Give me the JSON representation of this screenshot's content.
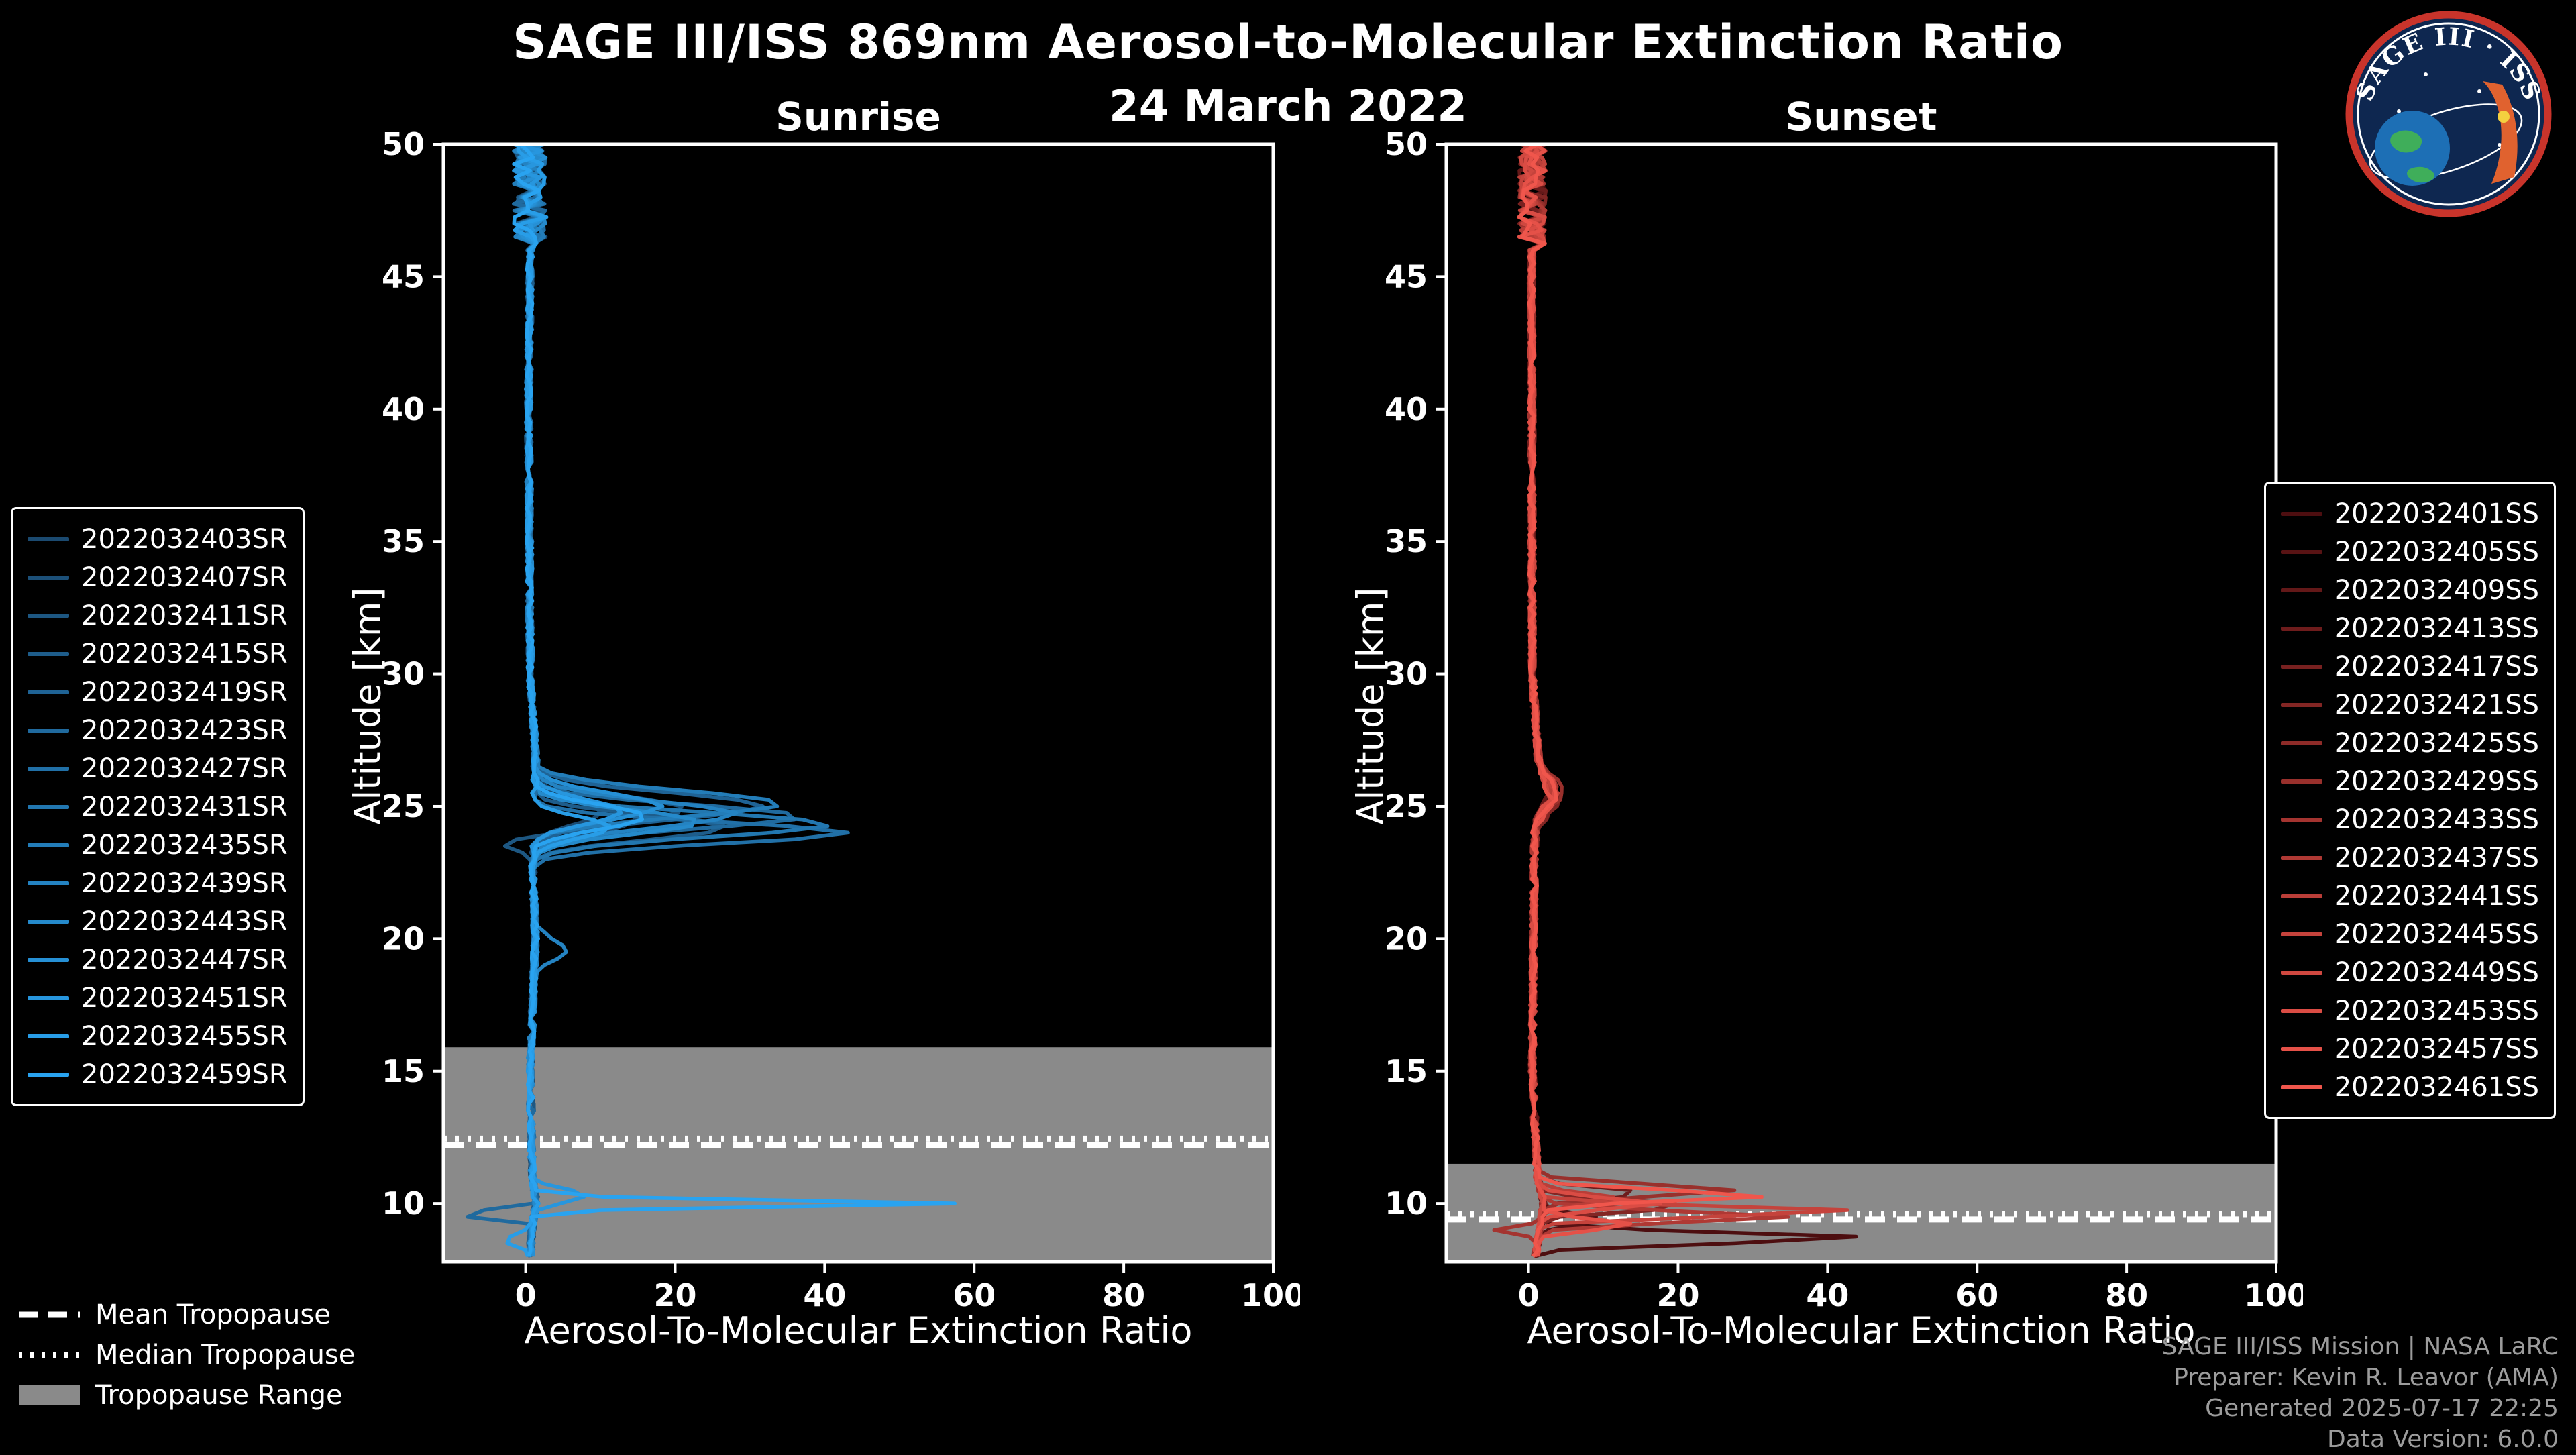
{
  "title": "SAGE III/ISS 869nm Aerosol-to-Molecular Extinction Ratio",
  "date": "24 March 2022",
  "logo": {
    "text": "SAGE III · ISS"
  },
  "credits": [
    "SAGE III/ISS Mission | NASA LaRC",
    "Preparer: Kevin R. Leavor (AMA)",
    "Generated 2025-07-17 22:25",
    "Data Version: 6.0.0"
  ],
  "tropopause_legend": [
    {
      "style": "dashed",
      "label": "Mean Tropopause"
    },
    {
      "style": "dotted",
      "label": "Median Tropopause"
    },
    {
      "style": "band",
      "label": "Tropopause Range"
    }
  ],
  "chart_data": [
    {
      "type": "line",
      "title": "Sunrise",
      "xlabel": "Aerosol-To-Molecular Extinction Ratio",
      "ylabel": "Altitude [km]",
      "xlim": [
        -11,
        100
      ],
      "ylim": [
        7.8,
        50
      ],
      "xticks": [
        0,
        20,
        40,
        60,
        80,
        100
      ],
      "yticks": [
        10,
        15,
        20,
        25,
        30,
        35,
        40,
        45,
        50
      ],
      "grid": false,
      "legend_position": "outside-left",
      "color_start": "#1b4a70",
      "color_end": "#29a3f0",
      "tropopause": {
        "mean_km": 12.2,
        "median_km": 12.45,
        "range_km": [
          7.8,
          15.9
        ],
        "band_color": "#8a8a8a"
      },
      "noise": {
        "top_alt": 46,
        "top_amp": 2.2,
        "base_amp": 0.4
      },
      "base_profile": [
        [
          50,
          0.6
        ],
        [
          46,
          0.6
        ],
        [
          40,
          0.4
        ],
        [
          30,
          0.6
        ],
        [
          27,
          1.3
        ],
        [
          23,
          0.9
        ],
        [
          20,
          1.3
        ],
        [
          15,
          0.6
        ],
        [
          11,
          0.9
        ],
        [
          10,
          1.4
        ],
        [
          9,
          0.8
        ],
        [
          7.8,
          0.6
        ]
      ],
      "series": [
        {
          "label": "2022032403SR",
          "peaks": [
            {
              "alt": 24.8,
              "amp": 9,
              "sigma": 0.5
            }
          ]
        },
        {
          "label": "2022032407SR",
          "peaks": [
            {
              "alt": 24.5,
              "amp": 14,
              "sigma": 0.5
            }
          ]
        },
        {
          "label": "2022032411SR",
          "peaks": [
            {
              "alt": 24.9,
              "amp": 20,
              "sigma": 0.5
            },
            {
              "alt": 23.6,
              "amp": -5,
              "sigma": 0.2
            }
          ]
        },
        {
          "label": "2022032415SR",
          "peaks": [
            {
              "alt": 24.2,
              "amp": 26,
              "sigma": 0.45
            }
          ]
        },
        {
          "label": "2022032419SR",
          "peaks": [
            {
              "alt": 25.0,
              "amp": 31,
              "sigma": 0.5
            }
          ]
        },
        {
          "label": "2022032423SR",
          "peaks": [
            {
              "alt": 24.6,
              "amp": 36,
              "sigma": 0.45
            },
            {
              "alt": 9.6,
              "amp": -11,
              "sigma": 0.15
            }
          ]
        },
        {
          "label": "2022032427SR",
          "peaks": [
            {
              "alt": 24.0,
              "amp": 42,
              "sigma": 0.4
            }
          ]
        },
        {
          "label": "2022032431SR",
          "peaks": [
            {
              "alt": 24.3,
              "amp": 40,
              "sigma": 0.45
            }
          ]
        },
        {
          "label": "2022032435SR",
          "peaks": [
            {
              "alt": 25.1,
              "amp": 33,
              "sigma": 0.5
            }
          ]
        },
        {
          "label": "2022032439SR",
          "peaks": [
            {
              "alt": 24.7,
              "amp": 27,
              "sigma": 0.5
            },
            {
              "alt": 19.6,
              "amp": 4,
              "sigma": 0.4
            }
          ]
        },
        {
          "label": "2022032443SR",
          "peaks": [
            {
              "alt": 24.4,
              "amp": 22,
              "sigma": 0.45
            }
          ]
        },
        {
          "label": "2022032447SR",
          "peaks": [
            {
              "alt": 25.0,
              "amp": 17,
              "sigma": 0.5
            }
          ]
        },
        {
          "label": "2022032451SR",
          "peaks": [
            {
              "alt": 24.8,
              "amp": 12,
              "sigma": 0.45
            },
            {
              "alt": 10.3,
              "amp": 7,
              "sigma": 0.25
            }
          ]
        },
        {
          "label": "2022032455SR",
          "peaks": [
            {
              "alt": 24.2,
              "amp": 10,
              "sigma": 0.4
            },
            {
              "alt": 8.6,
              "amp": -4,
              "sigma": 0.2
            }
          ]
        },
        {
          "label": "2022032459SR",
          "peaks": [
            {
              "alt": 24.6,
              "amp": 15,
              "sigma": 0.45
            },
            {
              "alt": 10.0,
              "amp": 56,
              "sigma": 0.13
            }
          ]
        }
      ]
    },
    {
      "type": "line",
      "title": "Sunset",
      "xlabel": "Aerosol-To-Molecular Extinction Ratio",
      "ylabel": "Altitude [km]",
      "xlim": [
        -11,
        100
      ],
      "ylim": [
        7.8,
        50
      ],
      "xticks": [
        0,
        20,
        40,
        60,
        80,
        100
      ],
      "yticks": [
        10,
        15,
        20,
        25,
        30,
        35,
        40,
        45,
        50
      ],
      "grid": false,
      "legend_position": "outside-right",
      "color_start": "#4d0e10",
      "color_end": "#f0564c",
      "tropopause": {
        "mean_km": 9.4,
        "median_km": 9.6,
        "range_km": [
          7.8,
          11.5
        ],
        "band_color": "#8a8a8a"
      },
      "noise": {
        "top_alt": 46,
        "top_amp": 1.8,
        "base_amp": 0.4
      },
      "base_profile": [
        [
          50,
          0.6
        ],
        [
          45,
          0.4
        ],
        [
          30,
          0.5
        ],
        [
          26,
          1.5
        ],
        [
          24,
          0.8
        ],
        [
          15,
          0.5
        ],
        [
          11,
          1.2
        ],
        [
          10,
          2.0
        ],
        [
          9,
          1.5
        ],
        [
          7.8,
          0.8
        ]
      ],
      "series": [
        {
          "label": "2022032401SS",
          "peaks": [
            {
              "alt": 25.6,
              "amp": 1.5,
              "sigma": 0.6
            },
            {
              "alt": 8.7,
              "amp": 44,
              "sigma": 0.2
            }
          ]
        },
        {
          "label": "2022032405SS",
          "peaks": [
            {
              "alt": 25.4,
              "amp": 2.0,
              "sigma": 0.5
            },
            {
              "alt": 9.4,
              "amp": 8,
              "sigma": 0.2
            }
          ]
        },
        {
          "label": "2022032409SS",
          "peaks": [
            {
              "alt": 25.8,
              "amp": 1.2,
              "sigma": 0.5
            }
          ]
        },
        {
          "label": "2022032413SS",
          "peaks": [
            {
              "alt": 25.3,
              "amp": 2.4,
              "sigma": 0.5
            },
            {
              "alt": 10.4,
              "amp": 14,
              "sigma": 0.2
            }
          ]
        },
        {
          "label": "2022032417SS",
          "peaks": [
            {
              "alt": 25.6,
              "amp": 1.8,
              "sigma": 0.5
            }
          ]
        },
        {
          "label": "2022032421SS",
          "peaks": [
            {
              "alt": 25.2,
              "amp": 2.6,
              "sigma": 0.6
            },
            {
              "alt": 9.9,
              "amp": 20,
              "sigma": 0.2
            }
          ]
        },
        {
          "label": "2022032425SS",
          "peaks": [
            {
              "alt": 25.7,
              "amp": 2.2,
              "sigma": 0.5
            }
          ]
        },
        {
          "label": "2022032429SS",
          "peaks": [
            {
              "alt": 25.5,
              "amp": 3.0,
              "sigma": 0.6
            },
            {
              "alt": 10.5,
              "amp": 26,
              "sigma": 0.22
            }
          ]
        },
        {
          "label": "2022032433SS",
          "peaks": [
            {
              "alt": 25.4,
              "amp": 2.0,
              "sigma": 0.5
            },
            {
              "alt": 9.0,
              "amp": -6,
              "sigma": 0.15
            }
          ]
        },
        {
          "label": "2022032437SS",
          "peaks": [
            {
              "alt": 25.6,
              "amp": 2.5,
              "sigma": 0.5
            },
            {
              "alt": 9.5,
              "amp": 33,
              "sigma": 0.2
            }
          ]
        },
        {
          "label": "2022032441SS",
          "peaks": [
            {
              "alt": 25.3,
              "amp": 1.6,
              "sigma": 0.5
            },
            {
              "alt": 10.2,
              "amp": 10,
              "sigma": 0.2
            }
          ]
        },
        {
          "label": "2022032445SS",
          "peaks": [
            {
              "alt": 25.5,
              "amp": 2.2,
              "sigma": 0.5
            },
            {
              "alt": 9.7,
              "amp": 42,
              "sigma": 0.18
            }
          ]
        },
        {
          "label": "2022032449SS",
          "peaks": [
            {
              "alt": 25.4,
              "amp": 1.4,
              "sigma": 0.5
            }
          ]
        },
        {
          "label": "2022032453SS",
          "peaks": [
            {
              "alt": 25.6,
              "amp": 2.0,
              "sigma": 0.5
            },
            {
              "alt": 10.0,
              "amp": 16,
              "sigma": 0.2
            }
          ]
        },
        {
          "label": "2022032457SS",
          "peaks": [
            {
              "alt": 25.2,
              "amp": 1.8,
              "sigma": 0.5
            },
            {
              "alt": 9.2,
              "amp": 12,
              "sigma": 0.2
            }
          ]
        },
        {
          "label": "2022032461SS",
          "peaks": [
            {
              "alt": 25.5,
              "amp": 2.4,
              "sigma": 0.5
            },
            {
              "alt": 10.3,
              "amp": 30,
              "sigma": 0.2
            }
          ]
        }
      ]
    }
  ]
}
